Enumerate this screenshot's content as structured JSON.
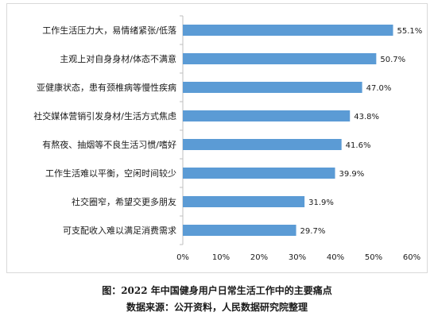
{
  "caption": {
    "line1": "图：2022 年中国健身用户日常生活工作中的主要痛点",
    "line2": "数据来源：公开资料，人民数据研究院整理"
  },
  "chart_data": {
    "type": "bar",
    "orientation": "horizontal",
    "categories": [
      "工作生活压力大，易情绪紧张/低落",
      "主观上对自身身材/体态不满意",
      "亚健康状态，患有颈椎病等慢性疾病",
      "社交媒体营销引发身材/生活方式焦虑",
      "有熬夜、抽烟等不良生活习惯/嗜好",
      "工作生活难以平衡，空闲时间较少",
      "社交圈窄，希望交更多朋友",
      "可支配收入难以满足消费需求"
    ],
    "values": [
      55.1,
      50.7,
      47.0,
      43.8,
      41.6,
      39.9,
      31.9,
      29.7
    ],
    "value_labels": [
      "55.1%",
      "50.7%",
      "47.0%",
      "43.8%",
      "41.6%",
      "39.9%",
      "31.9%",
      "29.7%"
    ],
    "x_ticks": [
      "0%",
      "10%",
      "20%",
      "30%",
      "40%",
      "50%",
      "60%"
    ],
    "xlim": [
      0,
      60
    ],
    "grid": false,
    "legend": "none",
    "bar_color": "#5b9bd5",
    "axis_color": "#bfbfbf",
    "text_color": "#1a1a1a"
  }
}
